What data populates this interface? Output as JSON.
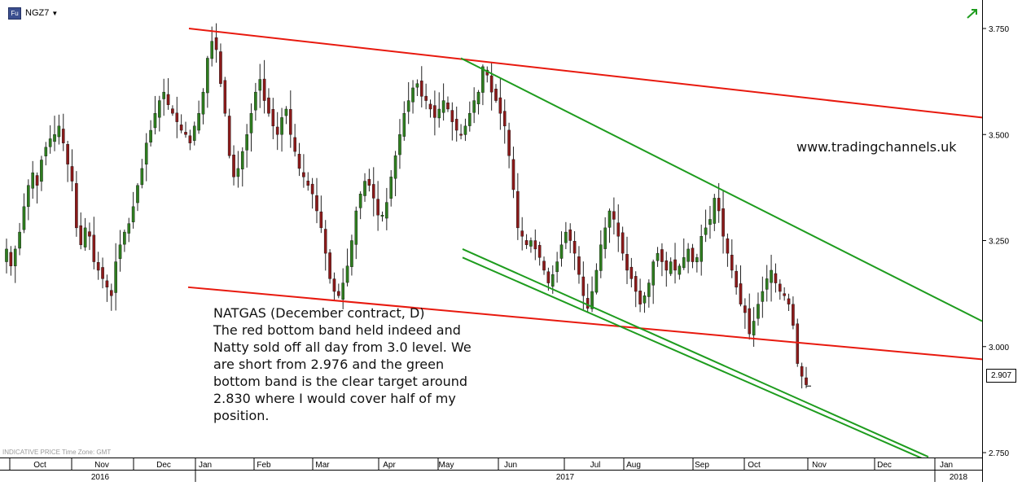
{
  "header": {
    "symbol_icon": "Fu",
    "symbol": "NGZ7",
    "dropdown_icon": "caret-down-icon",
    "status_icon": "green-trend-arrow-icon"
  },
  "annotation": {
    "lines": [
      "NATGAS (December contract, D)",
      "The red bottom band held indeed and",
      "Natty sold off all day from 3.0 level. We",
      "are short from 2.976 and the green",
      "bottom band is the clear target around",
      "2.830 where I would cover half of my",
      "position."
    ]
  },
  "watermark": "www.tradingchannels.uk",
  "footer": {
    "indicative": "INDICATIVE PRICE   Time Zone: GMT"
  },
  "last_price": "2.907",
  "colors": {
    "up": "#2e7d1f",
    "down": "#8b1a1a",
    "red_line": "#e8190e",
    "green_line": "#1e9c1e"
  },
  "chart_data": {
    "type": "candlestick",
    "instrument": "NGZ7",
    "y_range": [
      2.74,
      3.79
    ],
    "y_ticks": [
      "3.750",
      "3.500",
      "3.250",
      "3.000",
      "2.750"
    ],
    "x_month_labels": [
      "Oct",
      "Nov",
      "Dec",
      "Jan",
      "Feb",
      "Mar",
      "Apr",
      "May",
      "Jun",
      "Jul",
      "Aug",
      "Sep",
      "Oct",
      "Nov",
      "Dec",
      "Jan"
    ],
    "x_year_labels": [
      "2016",
      "2017",
      "2018"
    ],
    "close_series": [
      3.23,
      3.19,
      3.23,
      3.27,
      3.33,
      3.38,
      3.41,
      3.38,
      3.44,
      3.47,
      3.49,
      3.5,
      3.52,
      3.48,
      3.43,
      3.39,
      3.28,
      3.24,
      3.28,
      3.26,
      3.2,
      3.18,
      3.16,
      3.14,
      3.12,
      3.2,
      3.24,
      3.27,
      3.29,
      3.33,
      3.38,
      3.42,
      3.48,
      3.51,
      3.55,
      3.58,
      3.6,
      3.57,
      3.55,
      3.53,
      3.51,
      3.5,
      3.48,
      3.52,
      3.55,
      3.6,
      3.68,
      3.72,
      3.7,
      3.62,
      3.55,
      3.45,
      3.4,
      3.42,
      3.46,
      3.5,
      3.55,
      3.6,
      3.63,
      3.58,
      3.55,
      3.52,
      3.5,
      3.54,
      3.56,
      3.5,
      3.46,
      3.42,
      3.4,
      3.38,
      3.36,
      3.32,
      3.28,
      3.22,
      3.16,
      3.13,
      3.12,
      3.15,
      3.19,
      3.25,
      3.32,
      3.36,
      3.39,
      3.38,
      3.35,
      3.31,
      3.31,
      3.34,
      3.4,
      3.45,
      3.5,
      3.55,
      3.58,
      3.61,
      3.62,
      3.59,
      3.58,
      3.56,
      3.54,
      3.56,
      3.58,
      3.56,
      3.53,
      3.51,
      3.5,
      3.52,
      3.55,
      3.58,
      3.6,
      3.66,
      3.64,
      3.6,
      3.58,
      3.55,
      3.52,
      3.45,
      3.37,
      3.28,
      3.26,
      3.24,
      3.25,
      3.23,
      3.21,
      3.18,
      3.15,
      3.17,
      3.2,
      3.24,
      3.27,
      3.25,
      3.22,
      3.17,
      3.12,
      3.09,
      3.13,
      3.18,
      3.24,
      3.28,
      3.32,
      3.3,
      3.26,
      3.22,
      3.18,
      3.16,
      3.13,
      3.1,
      3.12,
      3.15,
      3.2,
      3.22,
      3.2,
      3.18,
      3.2,
      3.18,
      3.19,
      3.21,
      3.23,
      3.2,
      3.21,
      3.26,
      3.28,
      3.3,
      3.35,
      3.32,
      3.26,
      3.22,
      3.18,
      3.14,
      3.1,
      3.08,
      3.03,
      3.06,
      3.1,
      3.13,
      3.16,
      3.18,
      3.15,
      3.13,
      3.12,
      3.1,
      3.05,
      2.96,
      2.93,
      2.91
    ],
    "last_price": 2.907,
    "trend_lines": [
      {
        "color": "red",
        "from": [
          "Dec 2016",
          3.75
        ],
        "to": [
          "Jan 2018",
          3.54
        ]
      },
      {
        "color": "red",
        "from": [
          "Jan 2017",
          3.14
        ],
        "to": [
          "Jan 2018",
          2.97
        ]
      },
      {
        "color": "green",
        "from": [
          "May 2017",
          3.68
        ],
        "to": [
          "Jan 2018",
          3.06
        ]
      },
      {
        "color": "green",
        "from": [
          "Jun 2017",
          3.23
        ],
        "to": [
          "Dec 2017",
          2.74
        ]
      },
      {
        "color": "green",
        "from": [
          "Jun 2017",
          3.21
        ],
        "to": [
          "Dec 2017",
          2.73
        ]
      }
    ]
  }
}
